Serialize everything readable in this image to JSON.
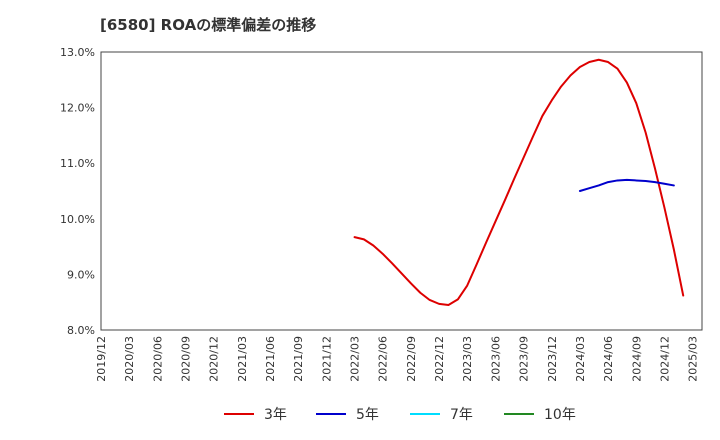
{
  "chart_data": {
    "type": "line",
    "title": "[6580]  ROAの標準偏差の推移",
    "xlabel": "",
    "ylabel": "",
    "ylim": [
      8.0,
      13.0
    ],
    "y_ticks": [
      8.0,
      9.0,
      10.0,
      11.0,
      12.0,
      13.0
    ],
    "y_tick_labels": [
      "8.0%",
      "9.0%",
      "10.0%",
      "11.0%",
      "12.0%",
      "13.0%"
    ],
    "x_tick_labels": [
      "2019/12",
      "2020/03",
      "2020/06",
      "2020/09",
      "2020/12",
      "2021/03",
      "2021/06",
      "2021/09",
      "2021/12",
      "2022/03",
      "2022/06",
      "2022/09",
      "2022/12",
      "2023/03",
      "2023/06",
      "2023/09",
      "2023/12",
      "2024/03",
      "2024/06",
      "2024/09",
      "2024/12",
      "2025/03"
    ],
    "x_month_start": "2019/12",
    "x_month_count": 64,
    "grid": true,
    "legend_position": "bottom",
    "series": [
      {
        "name": "3年",
        "color": "#dd0000",
        "start": "2022/03",
        "values": [
          9.67,
          9.63,
          9.52,
          9.37,
          9.2,
          9.02,
          8.84,
          8.67,
          8.54,
          8.47,
          8.45,
          8.55,
          8.8,
          9.18,
          9.57,
          9.95,
          10.33,
          10.72,
          11.1,
          11.48,
          11.85,
          12.13,
          12.38,
          12.58,
          12.73,
          12.82,
          12.86,
          12.82,
          12.7,
          12.45,
          12.08,
          11.55,
          10.9,
          10.2,
          9.45,
          8.62
        ]
      },
      {
        "name": "5年",
        "color": "#0000cc",
        "start": "2024/03",
        "values": [
          10.5,
          10.55,
          10.6,
          10.66,
          10.69,
          10.7,
          10.69,
          10.68,
          10.66,
          10.63,
          10.6
        ]
      },
      {
        "name": "7年",
        "color": "#00ddff",
        "start": "",
        "values": []
      },
      {
        "name": "10年",
        "color": "#228822",
        "start": "",
        "values": []
      }
    ]
  }
}
